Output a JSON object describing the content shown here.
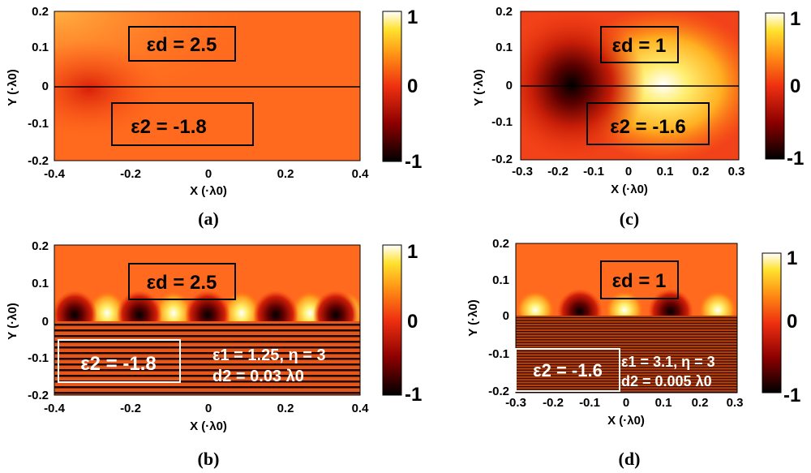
{
  "colorbar_ticks": [
    "1",
    "0",
    "-1"
  ],
  "colormap": [
    "#000000",
    "#8b0000",
    "#e8200c",
    "#ff7a10",
    "#ffe22e",
    "#ffffff"
  ],
  "panels": {
    "a": {
      "caption": "(a)",
      "xlabel": "X (·λ0)",
      "ylabel": "Y (·λ0)",
      "xticks": [
        "-0.4",
        "-0.2",
        "0",
        "0.2",
        "0.4"
      ],
      "yticks": [
        "0.2",
        "0.1",
        "0",
        "-0.1",
        "-0.2"
      ],
      "box1": "εd = 2.5",
      "box2": "ε2 = -1.8"
    },
    "b": {
      "caption": "(b)",
      "xlabel": "X (·λ0)",
      "ylabel": "Y (·λ0)",
      "xticks": [
        "-0.4",
        "-0.2",
        "0",
        "0.2",
        "0.4"
      ],
      "yticks": [
        "0.2",
        "0.1",
        "0",
        "-0.1",
        "-0.2"
      ],
      "box1": "εd = 2.5",
      "box2": "ε2 = -1.8",
      "params_line1": "ε1 = 1.25, η = 3",
      "params_line2": "d2 = 0.03 λ0"
    },
    "c": {
      "caption": "(c)",
      "xlabel": "X (·λ0)",
      "ylabel": "Y (·λ0)",
      "xticks": [
        "-0.3",
        "-0.2",
        "-0.1",
        "0",
        "0.1",
        "0.2",
        "0.3"
      ],
      "yticks": [
        "0.2",
        "0.1",
        "0",
        "-0.1",
        "-0.2"
      ],
      "box1": "εd = 1",
      "box2": "ε2 = -1.6"
    },
    "d": {
      "caption": "(d)",
      "xlabel": "X (·λ0)",
      "ylabel": "Y (·λ0)",
      "xticks": [
        "-0.3",
        "-0.2",
        "-0.1",
        "0",
        "0.1",
        "0.2",
        "0.3"
      ],
      "yticks": [
        "0.2",
        "0.1",
        "0",
        "-0.1",
        "-0.2"
      ],
      "box1": "εd = 1",
      "box2": "ε2 = -1.6",
      "params_line1": "ε1 = 3.1, η = 3",
      "params_line2": "d2 = 0.005 λ0"
    }
  }
}
